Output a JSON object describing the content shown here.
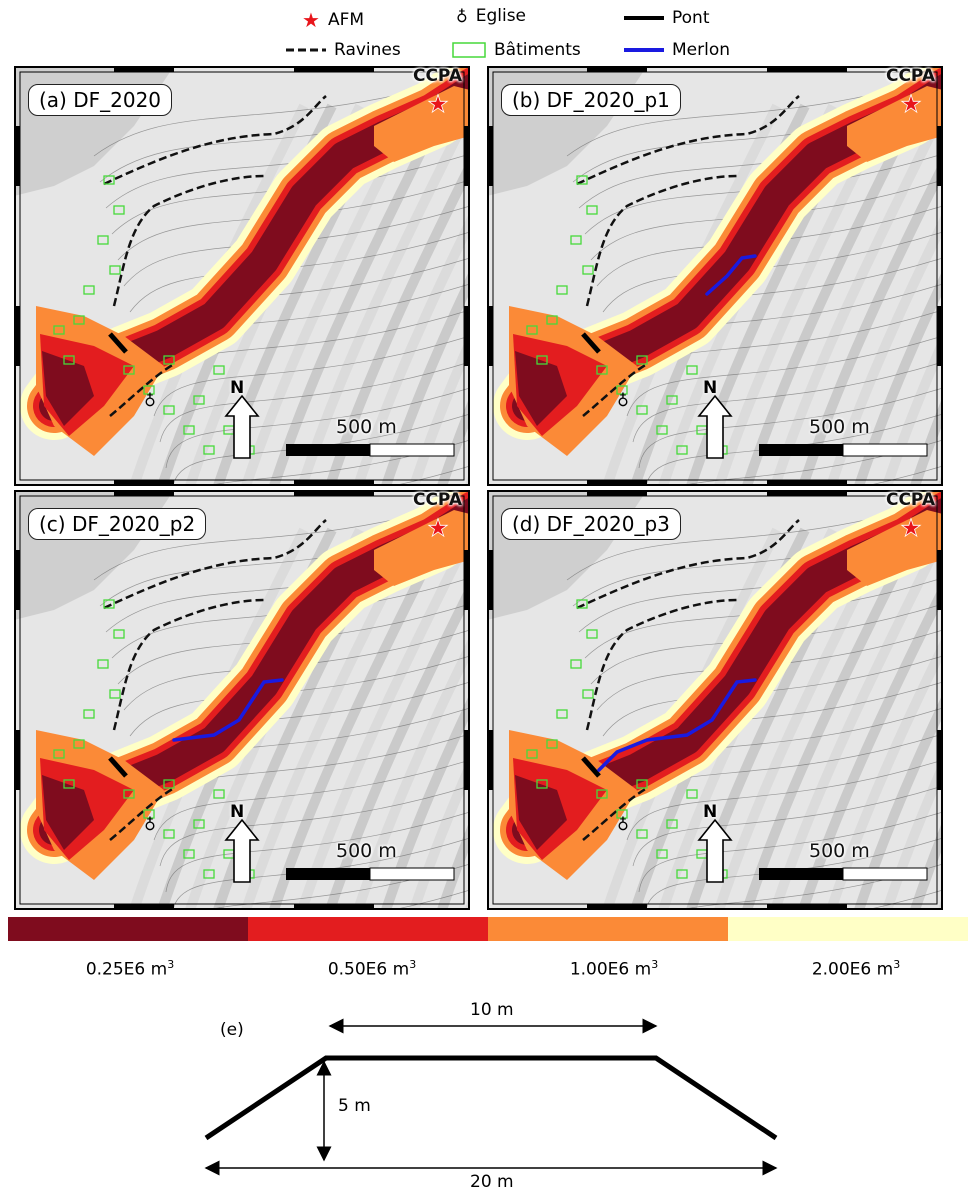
{
  "legend": {
    "afm": "AFM",
    "eglise": "Eglise",
    "pont": "Pont",
    "ravines": "Ravines",
    "batiments": "Bâtiments",
    "merlon": "Merlon",
    "colors": {
      "afm": "#e8151b",
      "ravines": "#111111",
      "batiments": "#47d93a",
      "pont": "#000000",
      "merlon": "#1a1ae0"
    }
  },
  "panels": [
    {
      "label": "(a) DF_2020",
      "ccpa": "CCPA",
      "north": "N",
      "scale": "500 m",
      "merlon": "none"
    },
    {
      "label": "(b) DF_2020_p1",
      "ccpa": "CCPA",
      "north": "N",
      "scale": "500 m",
      "merlon": "short"
    },
    {
      "label": "(c) DF_2020_p2",
      "ccpa": "CCPA",
      "north": "N",
      "scale": "500 m",
      "merlon": "medium"
    },
    {
      "label": "(d) DF_2020_p3",
      "ccpa": "CCPA",
      "north": "N",
      "scale": "500 m",
      "merlon": "long"
    }
  ],
  "colorbar": {
    "classes": [
      {
        "label": "0.25E6 m",
        "sup": "3",
        "color": "#7f0c1e"
      },
      {
        "label": "0.50E6 m",
        "sup": "3",
        "color": "#e31d1f"
      },
      {
        "label": "1.00E6 m",
        "sup": "3",
        "color": "#fb8a37"
      },
      {
        "label": "2.00E6 m",
        "sup": "3",
        "color": "#ffffc6"
      }
    ]
  },
  "profile": {
    "label": "(e)",
    "top_width": "10 m",
    "height": "5 m",
    "base_width": "20 m"
  }
}
